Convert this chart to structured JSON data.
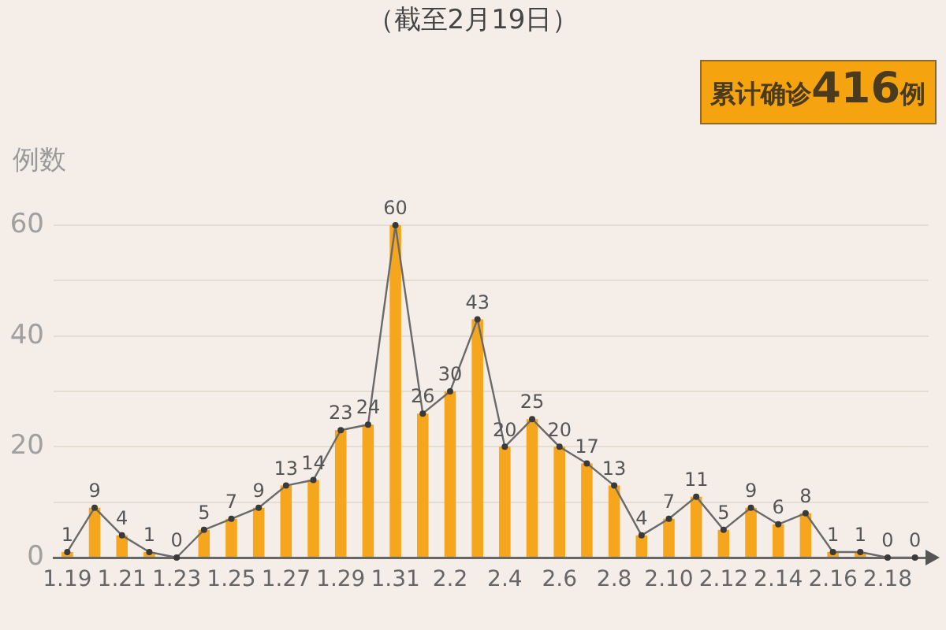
{
  "chart_data": {
    "type": "bar",
    "title": "（截至2月19日）",
    "ylabel": "例数",
    "annotations": [
      "累计确诊416例"
    ],
    "categories": [
      "1.19",
      null,
      "1.21",
      null,
      "1.23",
      null,
      "1.25",
      null,
      "1.27",
      null,
      "1.29",
      null,
      "1.31",
      null,
      "2.2",
      null,
      "2.4",
      null,
      "2.6",
      null,
      "2.8",
      null,
      "2.10",
      null,
      "2.12",
      null,
      "2.14",
      null,
      "2.16",
      null,
      "2.18",
      null
    ],
    "series": [
      {
        "color": "#f5a61c",
        "values": [
          1,
          9,
          4,
          1,
          0,
          5,
          7,
          9,
          13,
          14,
          23,
          24,
          60,
          26,
          30,
          43,
          20,
          25,
          20,
          17,
          13,
          4,
          7,
          11,
          5,
          9,
          6,
          8,
          1,
          1,
          0,
          0
        ]
      },
      {
        "type": "line",
        "color": "#6a6a6a",
        "values": [
          1,
          9,
          4,
          1,
          0,
          5,
          7,
          9,
          13,
          14,
          23,
          24,
          60,
          26,
          30,
          43,
          20,
          25,
          20,
          17,
          13,
          4,
          7,
          11,
          5,
          9,
          6,
          8,
          1,
          1,
          0,
          0
        ],
        "value_labels": [
          "1",
          "9",
          "4",
          "1",
          "0",
          "5",
          "7",
          "9",
          "13",
          "14",
          "23",
          "24",
          "60",
          "26",
          "30",
          "43",
          "20",
          "25",
          "20",
          "17",
          "13",
          "4",
          "7",
          "11",
          "5",
          "9",
          "6",
          "8",
          "1",
          "1",
          "0",
          "0"
        ]
      }
    ],
    "ylim": [
      0,
      60
    ],
    "yticks": [
      0,
      {
        "value": 10,
        "label": null
      },
      20,
      {
        "value": 30,
        "label": null
      },
      40,
      {
        "value": 50,
        "label": null
      },
      60
    ],
    "grid": "y",
    "marker": "circle"
  }
}
